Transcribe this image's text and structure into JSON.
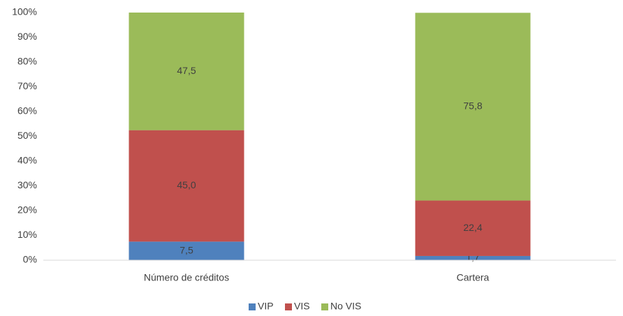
{
  "chart_data": {
    "type": "stacked_bar",
    "categories": [
      "Número de créditos",
      "Cartera"
    ],
    "series": [
      {
        "name": "VIP",
        "color": "#4f81bd",
        "values": [
          7.5,
          1.7
        ],
        "value_labels": [
          "7,5",
          "1,7"
        ]
      },
      {
        "name": "VIS",
        "color": "#c0504d",
        "values": [
          45.0,
          22.4
        ],
        "value_labels": [
          "45,0",
          "22,4"
        ]
      },
      {
        "name": "No VIS",
        "color": "#9bbb59",
        "values": [
          47.5,
          75.8
        ],
        "value_labels": [
          "47,5",
          "75,8"
        ]
      }
    ],
    "ylim": [
      0,
      100
    ],
    "yticks": [
      {
        "value": 0,
        "label": "0%"
      },
      {
        "value": 10,
        "label": "10%"
      },
      {
        "value": 20,
        "label": "20%"
      },
      {
        "value": 30,
        "label": "30%"
      },
      {
        "value": 40,
        "label": "40%"
      },
      {
        "value": 50,
        "label": "50%"
      },
      {
        "value": 60,
        "label": "60%"
      },
      {
        "value": 70,
        "label": "70%"
      },
      {
        "value": 80,
        "label": "80%"
      },
      {
        "value": 90,
        "label": "90%"
      },
      {
        "value": 100,
        "label": "100%"
      }
    ],
    "grid": false,
    "legend": "bottom"
  }
}
